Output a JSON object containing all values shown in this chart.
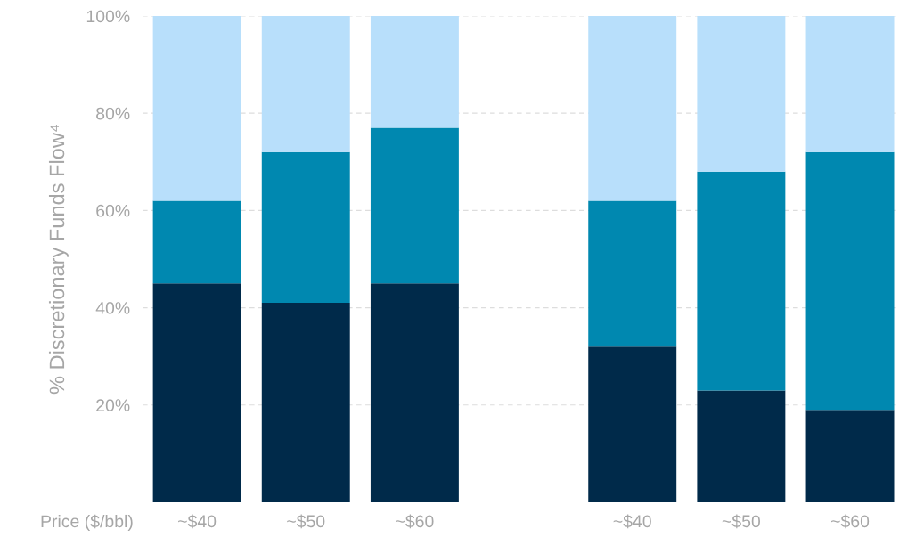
{
  "chart_data": {
    "type": "bar",
    "stacked": true,
    "xlabel": "Price ($/bbl)",
    "ylabel": "% Discretionary Funds Flow⁴",
    "categories": [
      "~$40",
      "~$50",
      "~$60",
      null,
      "~$40",
      "~$50",
      "~$60"
    ],
    "series": [
      {
        "color": "#002a4a",
        "values": [
          45,
          41,
          45,
          null,
          32,
          23,
          19
        ]
      },
      {
        "color": "#0088b0",
        "values": [
          17,
          31,
          32,
          null,
          30,
          45,
          53
        ]
      },
      {
        "color": "#b8dffb",
        "values": [
          38,
          28,
          23,
          null,
          38,
          32,
          28
        ]
      }
    ],
    "ylim": [
      0,
      100
    ],
    "yticks": [
      {
        "value": 20,
        "label": "20%"
      },
      {
        "value": 40,
        "label": "40%"
      },
      {
        "value": 60,
        "label": "60%"
      },
      {
        "value": 80,
        "label": "80%"
      },
      {
        "value": 100,
        "label": "100%"
      }
    ],
    "grid": "y",
    "legend": false
  }
}
